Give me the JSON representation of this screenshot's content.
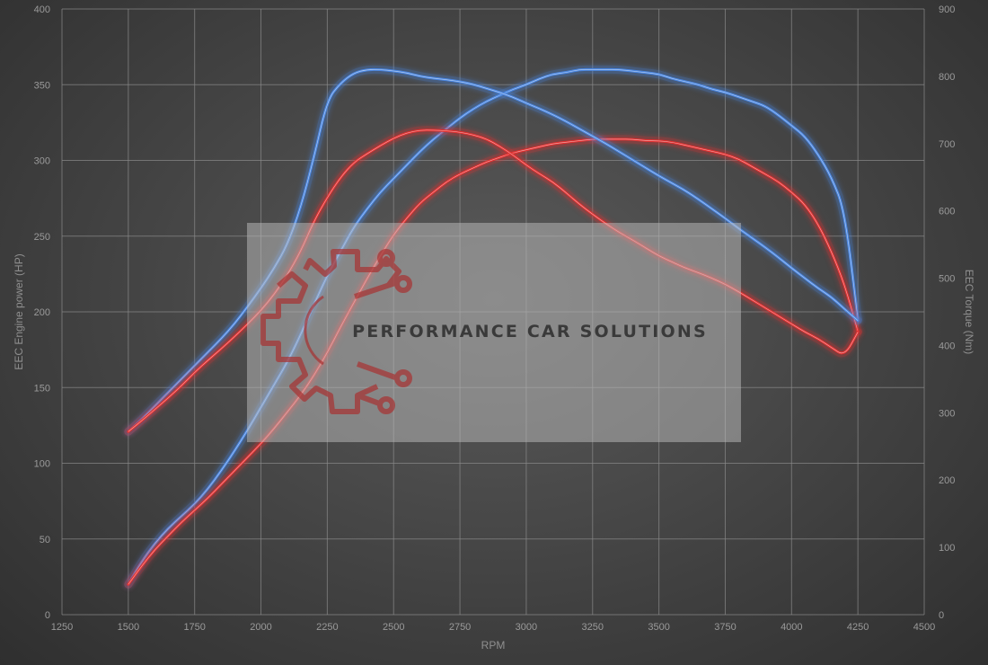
{
  "chart_data": {
    "type": "line",
    "title": "",
    "xlabel": "RPM",
    "ylabel_left": "EEC Engine power (HP)",
    "ylabel_right": "EEC Torque (Nm)",
    "xlim": [
      1250,
      4500
    ],
    "ylim_left": [
      0,
      400
    ],
    "ylim_right": [
      0,
      900
    ],
    "x_ticks": [
      1250,
      1500,
      1750,
      2000,
      2250,
      2500,
      2750,
      3000,
      3250,
      3500,
      3750,
      4000,
      4250,
      4500
    ],
    "y_ticks_left": [
      0,
      50,
      100,
      150,
      200,
      250,
      300,
      350,
      400
    ],
    "y_ticks_right": [
      0,
      100,
      200,
      300,
      400,
      500,
      600,
      700,
      800,
      900
    ],
    "grid": true,
    "series": [
      {
        "axis": "left",
        "color": "#4a86e0",
        "x": [
          1500,
          1550,
          1600,
          1650,
          1700,
          1750,
          1800,
          1850,
          1900,
          1950,
          2000,
          2050,
          2100,
          2150,
          2200,
          2250,
          2300,
          2350,
          2400,
          2450,
          2500,
          2550,
          2600,
          2650,
          2700,
          2750,
          2800,
          2850,
          2900,
          2950,
          3000,
          3050,
          3100,
          3150,
          3200,
          3250,
          3300,
          3350,
          3400,
          3450,
          3500,
          3550,
          3600,
          3650,
          3700,
          3750,
          3800,
          3850,
          3900,
          3950,
          4000,
          4050,
          4100,
          4150,
          4200,
          4250
        ],
        "values": [
          20,
          35,
          47,
          57,
          65,
          73,
          83,
          95,
          108,
          122,
          137,
          152,
          167,
          185,
          205,
          224,
          240,
          256,
          268,
          279,
          288,
          297,
          306,
          314,
          321,
          328,
          334,
          339,
          343,
          347,
          350,
          354,
          357,
          358,
          360,
          360,
          360,
          360,
          359,
          358,
          357,
          354,
          352,
          350,
          347,
          345,
          342,
          339,
          336,
          330,
          323,
          316,
          304,
          289,
          267,
          195
        ]
      },
      {
        "axis": "left",
        "color": "#e03030",
        "x": [
          1500,
          1550,
          1600,
          1650,
          1700,
          1750,
          1800,
          1850,
          1900,
          1950,
          2000,
          2050,
          2100,
          2150,
          2200,
          2250,
          2300,
          2350,
          2400,
          2450,
          2500,
          2550,
          2600,
          2650,
          2700,
          2750,
          2800,
          2850,
          2900,
          2950,
          3000,
          3050,
          3100,
          3150,
          3200,
          3250,
          3300,
          3350,
          3400,
          3450,
          3500,
          3550,
          3600,
          3650,
          3700,
          3750,
          3800,
          3850,
          3900,
          3950,
          4000,
          4050,
          4100,
          4150,
          4200,
          4250
        ],
        "values": [
          20,
          32,
          43,
          52,
          61,
          69,
          77,
          86,
          95,
          104,
          113,
          123,
          134,
          145,
          158,
          173,
          190,
          206,
          222,
          237,
          251,
          262,
          272,
          279,
          286,
          291,
          295,
          299,
          302,
          305,
          307,
          309,
          311,
          312,
          313,
          314,
          314,
          314,
          314,
          313,
          313,
          312,
          310,
          308,
          306,
          304,
          301,
          296,
          291,
          286,
          279,
          271,
          258,
          240,
          218,
          187
        ]
      },
      {
        "axis": "right",
        "color": "#4a86e0",
        "x": [
          1500,
          1550,
          1600,
          1650,
          1700,
          1750,
          1800,
          1850,
          1900,
          1950,
          2000,
          2050,
          2100,
          2150,
          2200,
          2250,
          2300,
          2350,
          2400,
          2450,
          2500,
          2550,
          2600,
          2650,
          2700,
          2750,
          2800,
          2850,
          2900,
          2950,
          3000,
          3050,
          3100,
          3150,
          3200,
          3250,
          3300,
          3350,
          3400,
          3450,
          3500,
          3550,
          3600,
          3650,
          3700,
          3750,
          3800,
          3850,
          3900,
          3950,
          4000,
          4050,
          4100,
          4150,
          4200,
          4250
        ],
        "values": [
          272,
          290,
          310,
          330,
          350,
          370,
          390,
          410,
          432,
          458,
          485,
          515,
          550,
          605,
          680,
          765,
          790,
          805,
          810,
          810,
          808,
          805,
          800,
          797,
          795,
          792,
          788,
          782,
          776,
          769,
          760,
          752,
          743,
          733,
          722,
          711,
          700,
          688,
          676,
          664,
          652,
          641,
          630,
          617,
          603,
          589,
          574,
          560,
          546,
          531,
          515,
          500,
          485,
          472,
          454,
          437
        ]
      },
      {
        "axis": "right",
        "color": "#e03030",
        "x": [
          1500,
          1550,
          1600,
          1650,
          1700,
          1750,
          1800,
          1850,
          1900,
          1950,
          2000,
          2050,
          2100,
          2150,
          2200,
          2250,
          2300,
          2350,
          2400,
          2450,
          2500,
          2550,
          2600,
          2650,
          2700,
          2750,
          2800,
          2850,
          2900,
          2950,
          3000,
          3050,
          3100,
          3150,
          3200,
          3250,
          3300,
          3350,
          3400,
          3450,
          3500,
          3550,
          3600,
          3650,
          3700,
          3750,
          3800,
          3850,
          3900,
          3950,
          4000,
          4050,
          4100,
          4150,
          4200,
          4250
        ],
        "values": [
          272,
          288,
          305,
          322,
          340,
          360,
          378,
          395,
          413,
          432,
          452,
          476,
          505,
          540,
          585,
          620,
          650,
          672,
          685,
          697,
          708,
          716,
          720,
          720,
          719,
          717,
          713,
          707,
          696,
          683,
          668,
          655,
          643,
          627,
          610,
          595,
          581,
          568,
          557,
          545,
          533,
          524,
          515,
          508,
          500,
          491,
          480,
          468,
          456,
          444,
          432,
          420,
          410,
          397,
          384,
          420
        ]
      }
    ]
  },
  "watermark": {
    "text": "PERFORMANCE CAR SOLUTIONS",
    "logo_icon": "gear-circuit-icon",
    "logo_color": "#a83232"
  }
}
